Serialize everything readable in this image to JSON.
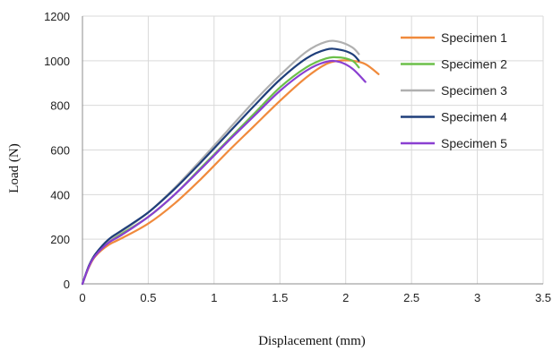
{
  "chart_data": {
    "type": "line",
    "title": "",
    "xlabel": "Displacement (mm)",
    "ylabel": "Load (N)",
    "xlim": [
      0,
      3.5
    ],
    "ylim": [
      0,
      1200
    ],
    "xticks": [
      0,
      0.5,
      1,
      1.5,
      2,
      2.5,
      3,
      3.5
    ],
    "xtick_labels": [
      "0",
      "0.5",
      "1",
      "1.5",
      "2",
      "2.5",
      "3",
      "3.5"
    ],
    "yticks": [
      0,
      200,
      400,
      600,
      800,
      1000,
      1200
    ],
    "ytick_labels": [
      "0",
      "200",
      "400",
      "600",
      "800",
      "1000",
      "1200"
    ],
    "grid": "horizontal and vertical",
    "legend_position": "top-right",
    "series": [
      {
        "name": "Specimen 1",
        "color": "#f08a3c",
        "x": [
          0,
          0.05,
          0.1,
          0.2,
          0.3,
          0.5,
          0.7,
          0.9,
          1.1,
          1.3,
          1.5,
          1.7,
          1.85,
          1.95,
          2.05,
          2.15,
          2.25
        ],
        "y": [
          0,
          75,
          125,
          175,
          205,
          270,
          360,
          470,
          590,
          705,
          820,
          925,
          985,
          1000,
          1000,
          985,
          940
        ]
      },
      {
        "name": "Specimen 2",
        "color": "#6cc04a",
        "x": [
          0,
          0.05,
          0.1,
          0.2,
          0.3,
          0.5,
          0.7,
          0.9,
          1.1,
          1.3,
          1.5,
          1.7,
          1.85,
          1.95,
          2.05,
          2.1
        ],
        "y": [
          0,
          80,
          130,
          190,
          225,
          300,
          400,
          520,
          640,
          760,
          880,
          970,
          1010,
          1015,
          1000,
          970
        ]
      },
      {
        "name": "Specimen 3",
        "color": "#b0b0b0",
        "x": [
          0,
          0.05,
          0.1,
          0.2,
          0.3,
          0.5,
          0.7,
          0.9,
          1.1,
          1.3,
          1.5,
          1.7,
          1.85,
          1.95,
          2.05,
          2.1
        ],
        "y": [
          0,
          82,
          135,
          195,
          235,
          320,
          430,
          555,
          685,
          815,
          935,
          1040,
          1085,
          1085,
          1060,
          1030
        ]
      },
      {
        "name": "Specimen 4",
        "color": "#1f3f7a",
        "x": [
          0,
          0.05,
          0.1,
          0.2,
          0.3,
          0.5,
          0.7,
          0.9,
          1.1,
          1.3,
          1.5,
          1.7,
          1.85,
          1.95,
          2.05,
          2.1
        ],
        "y": [
          0,
          82,
          135,
          200,
          240,
          320,
          425,
          545,
          670,
          795,
          915,
          1010,
          1050,
          1050,
          1030,
          1000
        ]
      },
      {
        "name": "Specimen 5",
        "color": "#8a3fd1",
        "x": [
          0,
          0.05,
          0.1,
          0.2,
          0.3,
          0.5,
          0.7,
          0.9,
          1.1,
          1.3,
          1.5,
          1.7,
          1.85,
          1.95,
          2.05,
          2.15
        ],
        "y": [
          0,
          78,
          128,
          185,
          220,
          300,
          400,
          515,
          635,
          750,
          865,
          955,
          995,
          995,
          965,
          905
        ]
      }
    ]
  }
}
